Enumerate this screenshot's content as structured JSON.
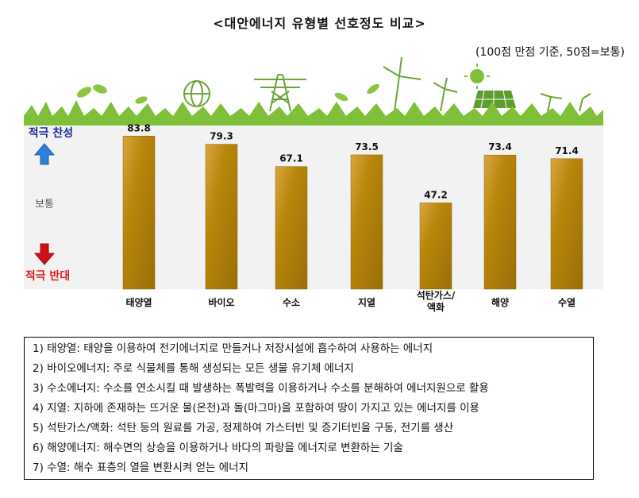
{
  "title": "<대안에너지 유형별 선호정도 비교>",
  "subtitle": "(100점 만점 기준, 50점=보통)",
  "side_labels": {
    "top": "적극 찬성",
    "middle": "보통",
    "bottom": "적극 반대"
  },
  "colors": {
    "bar": "#b8860b",
    "bar_dark": "#8c6408",
    "grass": "#7fbf3a",
    "top_label": "#1a2a9a",
    "bottom_label": "#e01b1b",
    "up_arrow": "#2f7ed8",
    "down_arrow": "#d01010"
  },
  "chart_data": {
    "type": "bar",
    "categories": [
      "태양열",
      "바이오",
      "수소",
      "지열",
      "석탄가스/\n액화",
      "해양",
      "수열"
    ],
    "values": [
      83.8,
      79.3,
      67.1,
      73.5,
      47.2,
      73.4,
      71.4
    ],
    "ylim": [
      0,
      100
    ]
  },
  "notes": [
    "1) 태양열: 태양을 이용하여 전기에너지로 만들거나 저장시설에 흡수하여 사용하는 에너지",
    "2) 바이오에너지: 주로 식물체를 통해 생성되는 모든 생물 유기체 에너지",
    "3) 수소에너지: 수소를 연소시킬 때 발생하는 폭발력을 이용하거나 수소를 분해하여 에너지원으로 활용",
    "4) 지열: 지하에 존재하는 뜨거운 물(온천)과 돌(마그마)을 포함하여 땅이 가지고 있는 에너지를 이용",
    "5) 석탄가스/액화: 석탄 등의 원료를 가공, 정제하여 가스터빈 및 증기터빈을 구동, 전기를 생산",
    "6) 해양에너지: 해수면의 상승을 이용하거나 바다의 파랑을 에너지로 변환하는 기술",
    "7) 수열: 해수 표층의 열을 변환시켜 얻는 에너지"
  ]
}
